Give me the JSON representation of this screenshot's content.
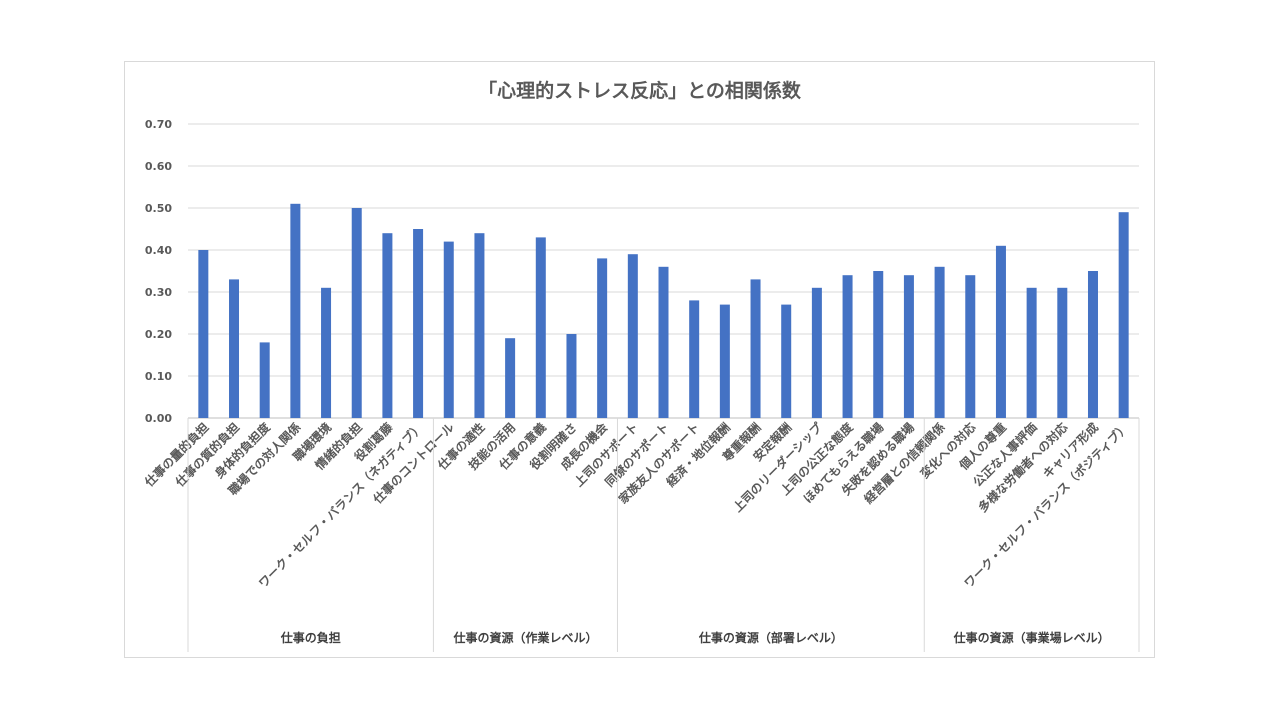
{
  "chart_data": {
    "type": "bar",
    "title": "「心理的ストレス反応」との相関係数",
    "ylim": [
      0,
      0.7
    ],
    "yticks": [
      "0.00",
      "0.10",
      "0.20",
      "0.30",
      "0.40",
      "0.50",
      "0.60",
      "0.70"
    ],
    "grid": true,
    "legend": "none",
    "color": "#4472c4",
    "categories": [
      "仕事の量的負担",
      "仕事の質的負担",
      "身体的負担度",
      "職場での対人関係",
      "職場環境",
      "情緒的負担",
      "役割葛藤",
      "ワーク・セルフ・バランス（ネガティブ）",
      "仕事のコントロール",
      "仕事の適性",
      "技能の活用",
      "仕事の意義",
      "役割明確さ",
      "成長の機会",
      "上司のサポート",
      "同僚のサポート",
      "家族友人のサポート",
      "経済・地位報酬",
      "尊重報酬",
      "安定報酬",
      "上司のリーダーシップ",
      "上司の公正な態度",
      "ほめてもらえる職場",
      "失敗を認める職場",
      "経営層との信頼関係",
      "変化への対応",
      "個人の尊重",
      "公正な人事評価",
      "多様な労働者への対応",
      "キャリア形成",
      "ワーク・セルフ・バランス（ポジティブ）"
    ],
    "values": [
      0.4,
      0.33,
      0.18,
      0.51,
      0.31,
      0.5,
      0.44,
      0.45,
      0.42,
      0.44,
      0.19,
      0.43,
      0.2,
      0.38,
      0.39,
      0.36,
      0.28,
      0.27,
      0.33,
      0.27,
      0.31,
      0.34,
      0.35,
      0.34,
      0.36,
      0.34,
      0.41,
      0.31,
      0.31,
      0.35,
      0.49
    ],
    "groups": [
      {
        "name": "仕事の負担",
        "start": 0,
        "end": 7
      },
      {
        "name": "仕事の資源（作業レベル）",
        "start": 8,
        "end": 13
      },
      {
        "name": "仕事の資源（部署レベル）",
        "start": 14,
        "end": 23
      },
      {
        "name": "仕事の資源（事業場レベル）",
        "start": 24,
        "end": 30
      }
    ]
  }
}
